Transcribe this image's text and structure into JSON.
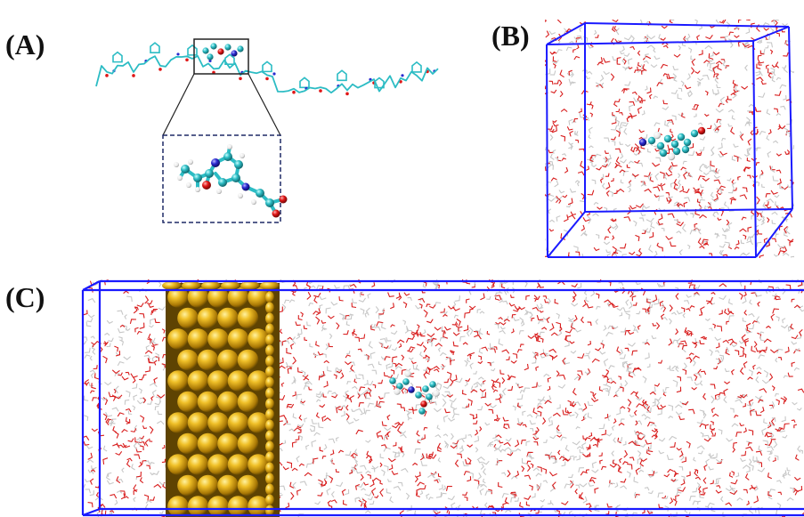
{
  "panels": {
    "a": {
      "label": "(A)"
    },
    "b": {
      "label": "(B)"
    },
    "c": {
      "label": "(C)"
    }
  },
  "colors": {
    "box": "#1a1aff",
    "water_oxygen": "#d81e1e",
    "water_hydrogen": "#e8e8e8",
    "carbon": "#2cbcc4",
    "nitrogen": "#2a2ad0",
    "oxygen": "#e01616",
    "hydrogen": "#ffffff",
    "gold": "#d9a514",
    "gold_highlight": "#ffe36a",
    "gold_shadow": "#7a5a04",
    "zoom_frame": "#1f2a66"
  }
}
